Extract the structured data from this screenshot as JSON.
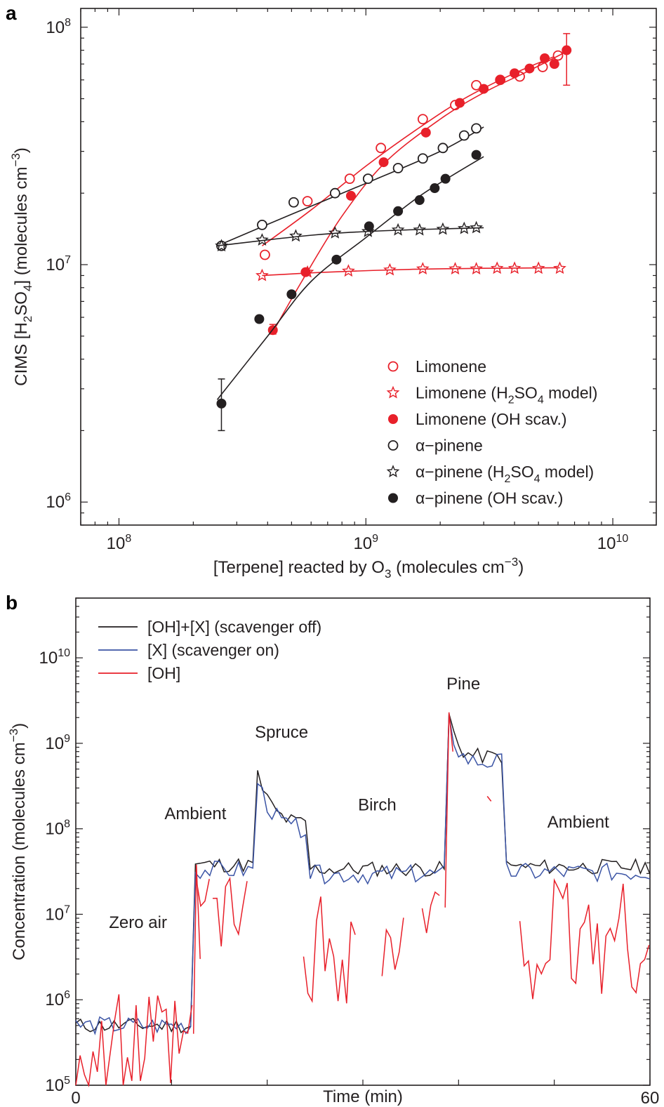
{
  "chart_data": [
    {
      "panel": "a",
      "type": "scatter",
      "xscale": "log",
      "yscale": "log",
      "xlim": [
        70000000,
        15000000000
      ],
      "ylim": [
        800000,
        120000000
      ],
      "xlabel": "[Terpene] reacted by O3 (molecules cm−3)",
      "ylabel": "CIMS [H2SO4] (molecules cm−3)",
      "xticks": [
        {
          "v": 100000000,
          "base": "10",
          "exp": "8"
        },
        {
          "v": 1000000000,
          "base": "10",
          "exp": "9"
        },
        {
          "v": 10000000000,
          "base": "10",
          "exp": "10"
        }
      ],
      "yticks": [
        {
          "v": 1000000,
          "base": "10",
          "exp": "6"
        },
        {
          "v": 10000000,
          "base": "10",
          "exp": "7"
        },
        {
          "v": 100000000,
          "base": "10",
          "exp": "8"
        }
      ],
      "legend_position": "bottom-right",
      "series": [
        {
          "name": "Limonene",
          "color": "#e8202a",
          "marker": "open-circle",
          "x": [
            390000000,
            580000000,
            860000000,
            1150000000,
            1700000000,
            2300000000,
            2800000000,
            3500000000,
            4200000000,
            5200000000,
            6000000000
          ],
          "y": [
            11000000,
            18500000,
            23000000,
            31000000,
            41000000,
            47000000,
            57000000,
            60000000,
            62000000,
            68000000,
            76000000
          ],
          "fit": [
            [
              380000000,
              12000000
            ],
            [
              600000000,
              17000000
            ],
            [
              1000000000,
              26000000
            ],
            [
              1600000000,
              37000000
            ],
            [
              2500000000,
              50000000
            ],
            [
              4000000000,
              64000000
            ],
            [
              6300000000,
              78000000
            ]
          ]
        },
        {
          "name": "Limonene (H2SO4 model)",
          "color": "#e8202a",
          "marker": "open-star",
          "x": [
            380000000,
            580000000,
            850000000,
            1250000000,
            1700000000,
            2300000000,
            2800000000,
            3400000000,
            4000000000,
            5000000000,
            6100000000
          ],
          "y": [
            9000000,
            9300000,
            9400000,
            9500000,
            9600000,
            9600000,
            9600000,
            9650000,
            9650000,
            9650000,
            9650000
          ],
          "fit": [
            [
              380000000,
              9000000
            ],
            [
              700000000,
              9300000
            ],
            [
              1500000000,
              9550000
            ],
            [
              3000000000,
              9650000
            ],
            [
              6100000000,
              9700000
            ]
          ]
        },
        {
          "name": "Limonene (OH scav.)",
          "color": "#e8202a",
          "marker": "filled-circle",
          "x": [
            420000000,
            570000000,
            870000000,
            1180000000,
            1750000000,
            2400000000,
            3000000000,
            3500000000,
            4000000000,
            4600000000,
            5300000000,
            5800000000,
            6500000000
          ],
          "y": [
            5300000,
            9300000,
            19500000,
            27000000,
            36000000,
            48000000,
            55000000,
            60000000,
            64000000,
            67000000,
            74000000,
            70000000,
            80000000
          ],
          "errorbars": [
            {
              "x": 420000000,
              "lo": 5100000,
              "hi": 5600000
            },
            {
              "x": 6500000000,
              "lo": 57000000,
              "hi": 94000000
            }
          ],
          "fit": [
            [
              420000000,
              5200000
            ],
            [
              550000000,
              8500000
            ],
            [
              800000000,
              16000000
            ],
            [
              1200000000,
              27000000
            ],
            [
              2000000000,
              41000000
            ],
            [
              3000000000,
              53000000
            ],
            [
              4500000000,
              65000000
            ],
            [
              6500000000,
              79000000
            ]
          ]
        },
        {
          "name": "α−pinene",
          "color": "#231f20",
          "marker": "open-circle",
          "x": [
            260000000,
            380000000,
            510000000,
            750000000,
            1020000000,
            1350000000,
            1700000000,
            2050000000,
            2500000000,
            2800000000
          ],
          "y": [
            12000000,
            14700000,
            18300000,
            20000000,
            23000000,
            25500000,
            28000000,
            31000000,
            35000000,
            37500000
          ],
          "fit": [
            [
              250000000,
              12000000
            ],
            [
              500000000,
              16300000
            ],
            [
              1000000000,
              22000000
            ],
            [
              2000000000,
              30000000
            ],
            [
              3000000000,
              38000000
            ]
          ]
        },
        {
          "name": "α−pinene (H2SO4 model)",
          "color": "#231f20",
          "marker": "open-star",
          "x": [
            260000000,
            380000000,
            520000000,
            750000000,
            1020000000,
            1350000000,
            1650000000,
            2050000000,
            2500000000,
            2800000000
          ],
          "y": [
            12000000,
            12700000,
            13200000,
            13600000,
            13800000,
            14000000,
            14000000,
            14100000,
            14200000,
            14300000
          ],
          "fit": [
            [
              250000000,
              12000000
            ],
            [
              600000000,
              13300000
            ],
            [
              1200000000,
              13900000
            ],
            [
              3000000000,
              14300000
            ]
          ]
        },
        {
          "name": "α−pinene (OH scav.)",
          "color": "#231f20",
          "marker": "filled-circle",
          "x": [
            260000000,
            370000000,
            500000000,
            760000000,
            1030000000,
            1350000000,
            1650000000,
            1900000000,
            2100000000,
            2800000000
          ],
          "y": [
            2600000,
            5900000,
            7500000,
            10500000,
            14500000,
            16800000,
            18700000,
            21000000,
            23000000,
            29000000
          ],
          "errorbars": [
            {
              "x": 260000000,
              "lo": 2000000,
              "hi": 3300000
            }
          ],
          "fit": [
            [
              250000000,
              2700000
            ],
            [
              400000000,
              5000000
            ],
            [
              600000000,
              8500000
            ],
            [
              1000000000,
              13000000
            ],
            [
              1600000000,
              19000000
            ],
            [
              2200000000,
              23500000
            ],
            [
              3000000000,
              28500000
            ]
          ]
        }
      ],
      "legend_labels": [
        {
          "pre": "Limonene",
          "sub": "",
          "post": ""
        },
        {
          "pre": "Limonene (H",
          "sub": "2",
          "mid": "SO",
          "sub2": "4",
          "post": " model)"
        },
        {
          "pre": "Limonene (OH scav.)",
          "sub": "",
          "post": ""
        },
        {
          "pre": "α−pinene",
          "sub": "",
          "post": ""
        },
        {
          "pre": "α−pinene (H",
          "sub": "2",
          "mid": "SO",
          "sub2": "4",
          "post": " model)"
        },
        {
          "pre": "α−pinene (OH scav.)",
          "sub": "",
          "post": ""
        }
      ]
    },
    {
      "panel": "b",
      "type": "line",
      "yscale": "log",
      "xlim": [
        0,
        60
      ],
      "ylim": [
        100000,
        50000000000
      ],
      "xlabel": "Time (min)",
      "ylabel": "Concentration (molecules cm−3)",
      "xticks": [
        "0",
        "60"
      ],
      "yticks": [
        {
          "v": 100000,
          "base": "10",
          "exp": "5"
        },
        {
          "v": 1000000,
          "base": "10",
          "exp": "6"
        },
        {
          "v": 10000000,
          "base": "10",
          "exp": "7"
        },
        {
          "v": 100000000,
          "base": "10",
          "exp": "8"
        },
        {
          "v": 1000000000,
          "base": "10",
          "exp": "9"
        },
        {
          "v": 10000000000,
          "base": "10",
          "exp": "10"
        }
      ],
      "legend_position": "top-left",
      "series": [
        {
          "name": "[OH]+[X] (scavenger off)",
          "color": "#231f20"
        },
        {
          "name": "[X] (scavenger on)",
          "color": "#3b54a5"
        },
        {
          "name": "[OH]",
          "color": "#e8202a"
        }
      ],
      "annotations": [
        {
          "text": "Zero air",
          "x": 6.5,
          "y": 8000000
        },
        {
          "text": "Ambient",
          "x": 12.5,
          "y": 150000000
        },
        {
          "text": "Spruce",
          "x": 21.5,
          "y": 1350000000
        },
        {
          "text": "Birch",
          "x": 31.5,
          "y": 190000000
        },
        {
          "text": "Pine",
          "x": 40.5,
          "y": 5000000000
        },
        {
          "text": "Ambient",
          "x": 52.5,
          "y": 120000000
        }
      ]
    }
  ]
}
